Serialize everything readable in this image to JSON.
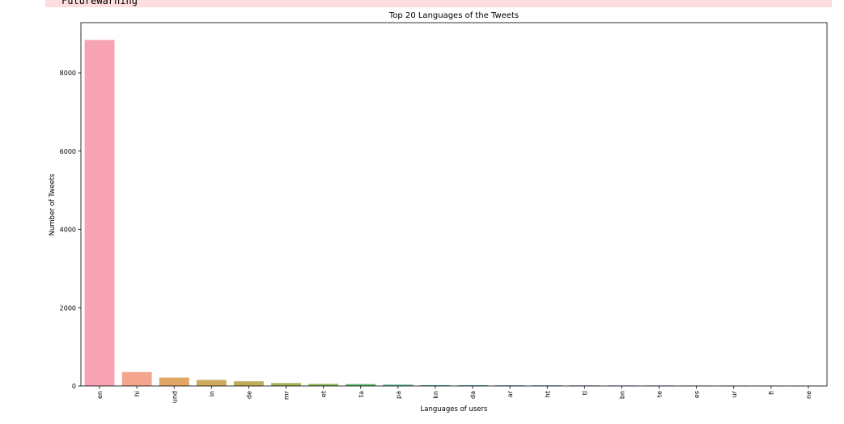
{
  "output": {
    "warning_text": "FutureWarning"
  },
  "chart_data": {
    "type": "bar",
    "title": "Top 20 Languages of the Tweets",
    "xlabel": "Languages of users",
    "ylabel": "Number of Tweets",
    "categories": [
      "en",
      "hi",
      "und",
      "in",
      "de",
      "mr",
      "et",
      "ta",
      "pa",
      "kn",
      "da",
      "ar",
      "ht",
      "tl",
      "bn",
      "te",
      "es",
      "ur",
      "fi",
      "ne"
    ],
    "values": [
      8840,
      355,
      215,
      155,
      120,
      75,
      52,
      48,
      35,
      22,
      20,
      18,
      17,
      16,
      14,
      13,
      12,
      11,
      10,
      9
    ],
    "colors": [
      "#f7a3b4",
      "#f3a68d",
      "#e1a765",
      "#cfaa5e",
      "#bdad5a",
      "#a7b058",
      "#8ab557",
      "#60ba6f",
      "#5bb59a",
      "#5db3ab",
      "#5fb1b8",
      "#62afc3",
      "#66acd1",
      "#8aa6e4",
      "#ab9ee8",
      "#c694e8",
      "#de8ae5",
      "#ea8ed0",
      "#f093bf",
      "#f59bac"
    ],
    "yticks": [
      0,
      2000,
      4000,
      6000,
      8000
    ],
    "ylim": [
      0,
      9282
    ],
    "grid": false,
    "legend": "none"
  }
}
